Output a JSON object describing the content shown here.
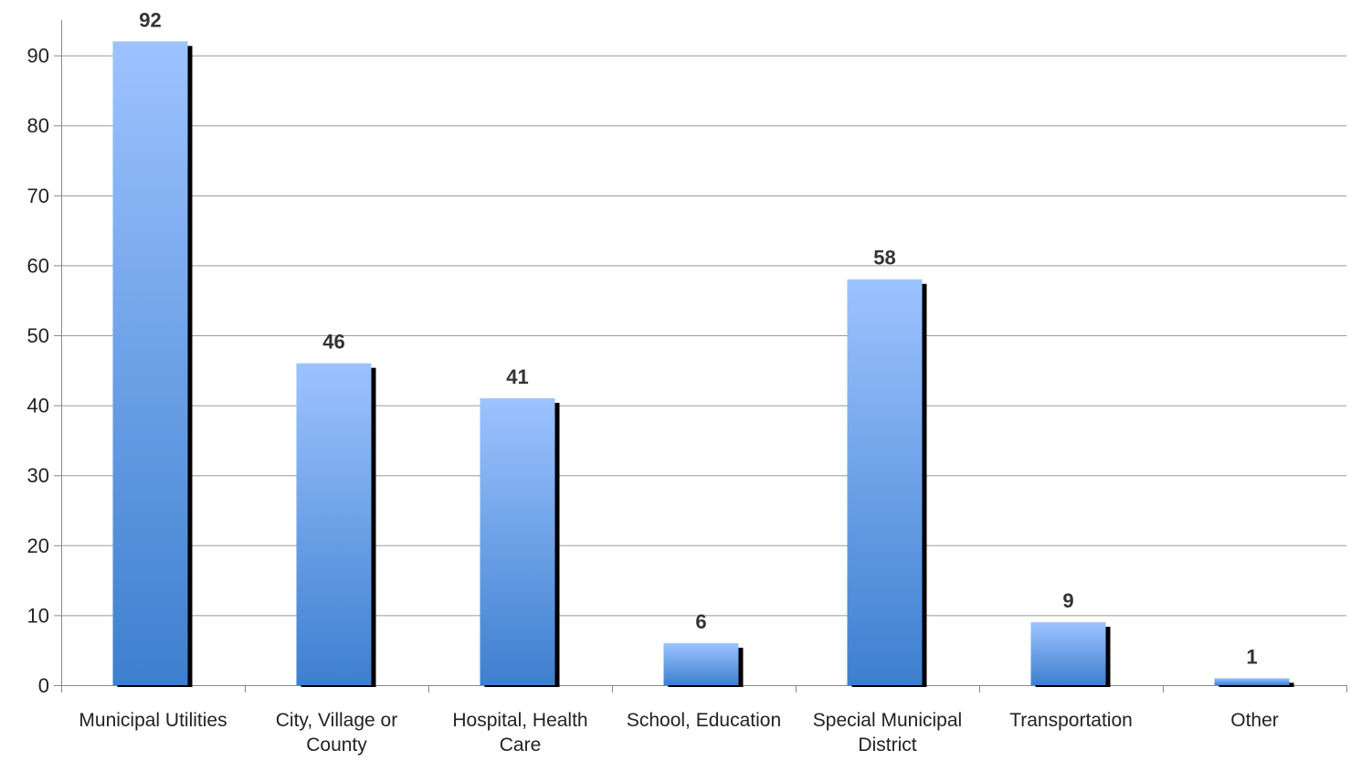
{
  "chart_data": {
    "type": "bar",
    "categories": [
      "Municipal Utilities",
      "City, Village or County",
      "Hospital, Health Care",
      "School, Education",
      "Special Municipal District",
      "Transportation",
      "Other"
    ],
    "values": [
      92,
      46,
      41,
      6,
      58,
      9,
      1
    ],
    "title": "",
    "xlabel": "",
    "ylabel": "",
    "ylim": [
      0,
      97
    ],
    "yticks": [
      0,
      10,
      20,
      30,
      40,
      50,
      60,
      70,
      80,
      90
    ],
    "grid": true,
    "legend": "none",
    "data_labels": true,
    "colors": {
      "bar_top": "#9dc3ff",
      "bar_bottom": "#3d7fcf",
      "bar_shadow": "#000000",
      "grid": "#999999",
      "axis": "#888888",
      "label_text": "#222222",
      "value_text": "#333333"
    }
  }
}
